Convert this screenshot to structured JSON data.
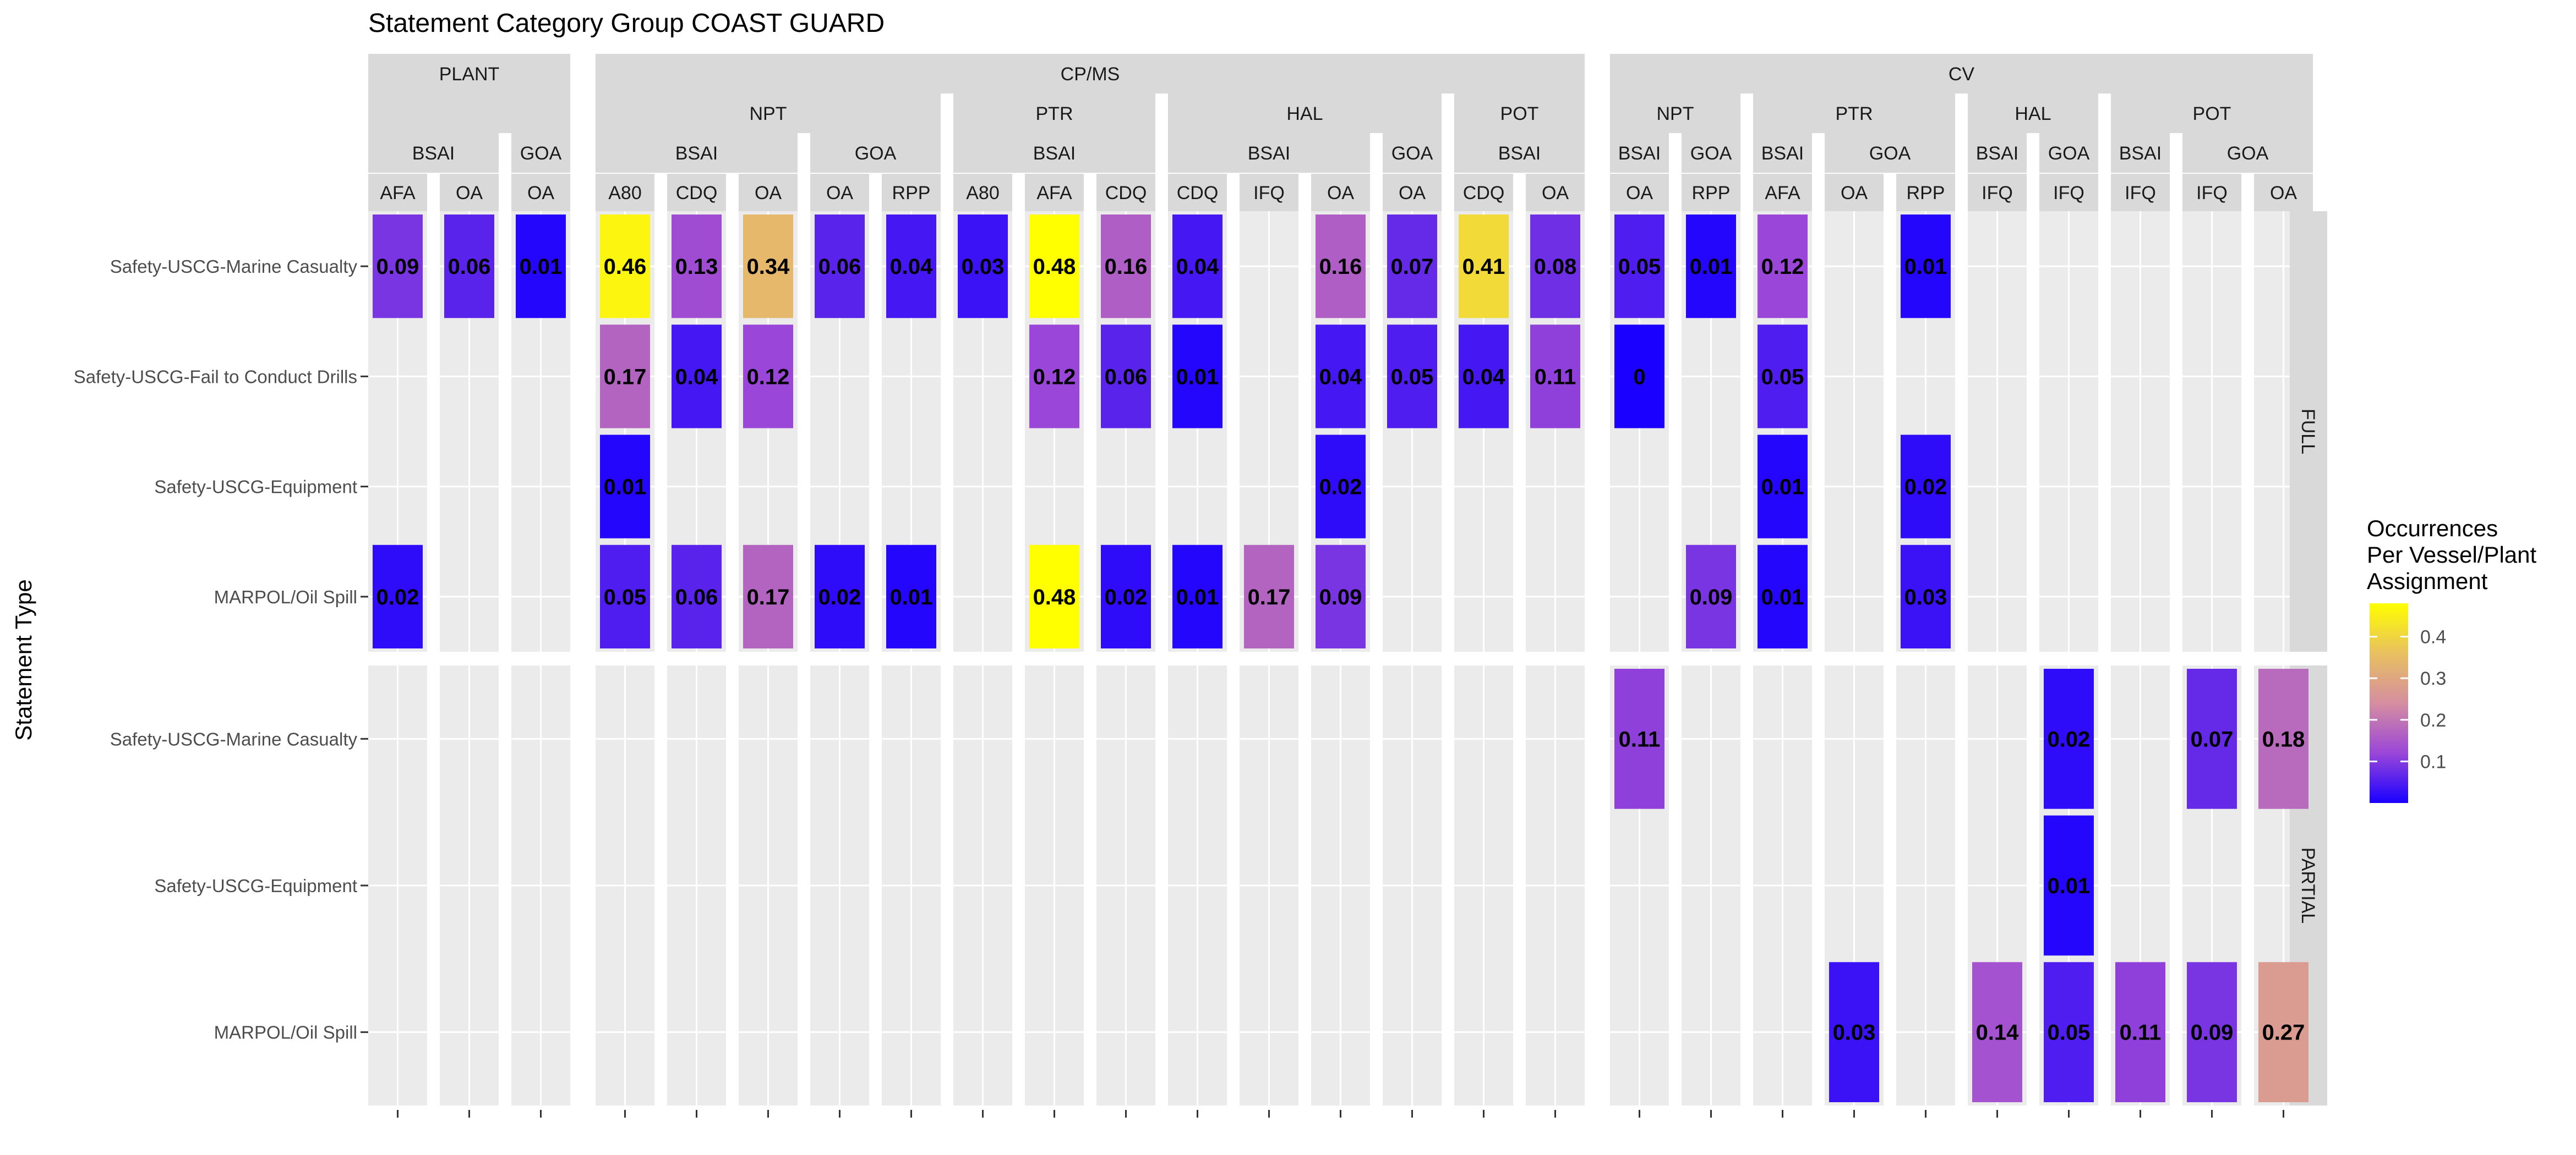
{
  "chart_data": {
    "type": "heatmap",
    "title": "Statement Category Group COAST GUARD",
    "ylabel": "Statement Type",
    "legend": {
      "title": [
        "Occurrences",
        "Per Vessel/Plant",
        "Assignment"
      ],
      "ticks": [
        "0.1",
        "0.2",
        "0.3",
        "0.4"
      ],
      "tick_values": [
        0.1,
        0.2,
        0.3,
        0.4
      ],
      "min": 0.0,
      "max": 0.48,
      "colors": [
        "#1a00ff",
        "#9a46d8",
        "#d58ea0",
        "#e8c060",
        "#ffff00"
      ],
      "placement": "right"
    },
    "column_groups": [
      {
        "name": "PLANT",
        "subgroups": [
          {
            "name": "",
            "regions": [
              {
                "name": "BSAI",
                "cols": [
                  "AFA",
                  "OA"
                ]
              },
              {
                "name": "GOA",
                "cols": [
                  "OA"
                ]
              }
            ]
          }
        ]
      },
      {
        "name": "CP/MS",
        "subgroups": [
          {
            "name": "NPT",
            "regions": [
              {
                "name": "BSAI",
                "cols": [
                  "A80",
                  "CDQ",
                  "OA"
                ]
              },
              {
                "name": "GOA",
                "cols": [
                  "OA",
                  "RPP"
                ]
              }
            ]
          },
          {
            "name": "PTR",
            "regions": [
              {
                "name": "BSAI",
                "cols": [
                  "A80",
                  "AFA",
                  "CDQ"
                ]
              }
            ]
          },
          {
            "name": "HAL",
            "regions": [
              {
                "name": "BSAI",
                "cols": [
                  "CDQ",
                  "IFQ",
                  "OA"
                ]
              },
              {
                "name": "GOA",
                "cols": [
                  "OA"
                ]
              }
            ]
          },
          {
            "name": "POT",
            "regions": [
              {
                "name": "BSAI",
                "cols": [
                  "CDQ",
                  "OA"
                ]
              }
            ]
          }
        ]
      },
      {
        "name": "CV",
        "subgroups": [
          {
            "name": "NPT",
            "regions": [
              {
                "name": "BSAI",
                "cols": [
                  "OA"
                ]
              },
              {
                "name": "GOA",
                "cols": [
                  "RPP"
                ]
              }
            ]
          },
          {
            "name": "PTR",
            "regions": [
              {
                "name": "BSAI",
                "cols": [
                  "AFA"
                ]
              },
              {
                "name": "GOA",
                "cols": [
                  "OA",
                  "RPP"
                ]
              }
            ]
          },
          {
            "name": "HAL",
            "regions": [
              {
                "name": "BSAI",
                "cols": [
                  "IFQ"
                ]
              },
              {
                "name": "GOA",
                "cols": [
                  "IFQ"
                ]
              }
            ]
          },
          {
            "name": "POT",
            "regions": [
              {
                "name": "BSAI",
                "cols": [
                  "IFQ"
                ]
              },
              {
                "name": "GOA",
                "cols": [
                  "IFQ",
                  "OA"
                ]
              }
            ]
          }
        ]
      }
    ],
    "row_panels": [
      {
        "name": "FULL",
        "rows": [
          "Safety-USCG-Marine Casualty",
          "Safety-USCG-Fail to Conduct Drills",
          "Safety-USCG-Equipment",
          "MARPOL/Oil Spill"
        ]
      },
      {
        "name": "PARTIAL",
        "rows": [
          "Safety-USCG-Marine Casualty",
          "Safety-USCG-Equipment",
          "MARPOL/Oil Spill"
        ]
      }
    ],
    "cells": [
      {
        "panel": 0,
        "row": 0,
        "col": 0,
        "value": 0.09,
        "label": "0.09"
      },
      {
        "panel": 0,
        "row": 0,
        "col": 1,
        "value": 0.06,
        "label": "0.06"
      },
      {
        "panel": 0,
        "row": 0,
        "col": 2,
        "value": 0.01,
        "label": "0.01"
      },
      {
        "panel": 0,
        "row": 0,
        "col": 3,
        "value": 0.46,
        "label": "0.46"
      },
      {
        "panel": 0,
        "row": 0,
        "col": 4,
        "value": 0.13,
        "label": "0.13"
      },
      {
        "panel": 0,
        "row": 0,
        "col": 5,
        "value": 0.34,
        "label": "0.34"
      },
      {
        "panel": 0,
        "row": 0,
        "col": 6,
        "value": 0.06,
        "label": "0.06"
      },
      {
        "panel": 0,
        "row": 0,
        "col": 7,
        "value": 0.04,
        "label": "0.04"
      },
      {
        "panel": 0,
        "row": 0,
        "col": 8,
        "value": 0.03,
        "label": "0.03"
      },
      {
        "panel": 0,
        "row": 0,
        "col": 9,
        "value": 0.48,
        "label": "0.48"
      },
      {
        "panel": 0,
        "row": 0,
        "col": 10,
        "value": 0.16,
        "label": "0.16"
      },
      {
        "panel": 0,
        "row": 0,
        "col": 11,
        "value": 0.04,
        "label": "0.04"
      },
      {
        "panel": 0,
        "row": 0,
        "col": 13,
        "value": 0.16,
        "label": "0.16"
      },
      {
        "panel": 0,
        "row": 0,
        "col": 14,
        "value": 0.07,
        "label": "0.07"
      },
      {
        "panel": 0,
        "row": 0,
        "col": 15,
        "value": 0.41,
        "label": "0.41"
      },
      {
        "panel": 0,
        "row": 0,
        "col": 16,
        "value": 0.08,
        "label": "0.08"
      },
      {
        "panel": 0,
        "row": 0,
        "col": 17,
        "value": 0.05,
        "label": "0.05"
      },
      {
        "panel": 0,
        "row": 0,
        "col": 18,
        "value": 0.01,
        "label": "0.01"
      },
      {
        "panel": 0,
        "row": 0,
        "col": 19,
        "value": 0.12,
        "label": "0.12"
      },
      {
        "panel": 0,
        "row": 0,
        "col": 21,
        "value": 0.01,
        "label": "0.01"
      },
      {
        "panel": 0,
        "row": 1,
        "col": 3,
        "value": 0.17,
        "label": "0.17"
      },
      {
        "panel": 0,
        "row": 1,
        "col": 4,
        "value": 0.04,
        "label": "0.04"
      },
      {
        "panel": 0,
        "row": 1,
        "col": 5,
        "value": 0.12,
        "label": "0.12"
      },
      {
        "panel": 0,
        "row": 1,
        "col": 9,
        "value": 0.12,
        "label": "0.12"
      },
      {
        "panel": 0,
        "row": 1,
        "col": 10,
        "value": 0.06,
        "label": "0.06"
      },
      {
        "panel": 0,
        "row": 1,
        "col": 11,
        "value": 0.01,
        "label": "0.01"
      },
      {
        "panel": 0,
        "row": 1,
        "col": 13,
        "value": 0.04,
        "label": "0.04"
      },
      {
        "panel": 0,
        "row": 1,
        "col": 14,
        "value": 0.05,
        "label": "0.05"
      },
      {
        "panel": 0,
        "row": 1,
        "col": 15,
        "value": 0.04,
        "label": "0.04"
      },
      {
        "panel": 0,
        "row": 1,
        "col": 16,
        "value": 0.11,
        "label": "0.11"
      },
      {
        "panel": 0,
        "row": 1,
        "col": 17,
        "value": 0.0,
        "label": "0"
      },
      {
        "panel": 0,
        "row": 1,
        "col": 19,
        "value": 0.05,
        "label": "0.05"
      },
      {
        "panel": 0,
        "row": 2,
        "col": 3,
        "value": 0.01,
        "label": "0.01"
      },
      {
        "panel": 0,
        "row": 2,
        "col": 13,
        "value": 0.02,
        "label": "0.02"
      },
      {
        "panel": 0,
        "row": 2,
        "col": 19,
        "value": 0.01,
        "label": "0.01"
      },
      {
        "panel": 0,
        "row": 2,
        "col": 21,
        "value": 0.02,
        "label": "0.02"
      },
      {
        "panel": 0,
        "row": 3,
        "col": 0,
        "value": 0.02,
        "label": "0.02"
      },
      {
        "panel": 0,
        "row": 3,
        "col": 3,
        "value": 0.05,
        "label": "0.05"
      },
      {
        "panel": 0,
        "row": 3,
        "col": 4,
        "value": 0.06,
        "label": "0.06"
      },
      {
        "panel": 0,
        "row": 3,
        "col": 5,
        "value": 0.17,
        "label": "0.17"
      },
      {
        "panel": 0,
        "row": 3,
        "col": 6,
        "value": 0.02,
        "label": "0.02"
      },
      {
        "panel": 0,
        "row": 3,
        "col": 7,
        "value": 0.01,
        "label": "0.01"
      },
      {
        "panel": 0,
        "row": 3,
        "col": 9,
        "value": 0.48,
        "label": "0.48"
      },
      {
        "panel": 0,
        "row": 3,
        "col": 10,
        "value": 0.02,
        "label": "0.02"
      },
      {
        "panel": 0,
        "row": 3,
        "col": 11,
        "value": 0.01,
        "label": "0.01"
      },
      {
        "panel": 0,
        "row": 3,
        "col": 12,
        "value": 0.17,
        "label": "0.17"
      },
      {
        "panel": 0,
        "row": 3,
        "col": 13,
        "value": 0.09,
        "label": "0.09"
      },
      {
        "panel": 0,
        "row": 3,
        "col": 18,
        "value": 0.09,
        "label": "0.09"
      },
      {
        "panel": 0,
        "row": 3,
        "col": 19,
        "value": 0.01,
        "label": "0.01"
      },
      {
        "panel": 0,
        "row": 3,
        "col": 21,
        "value": 0.03,
        "label": "0.03"
      },
      {
        "panel": 1,
        "row": 0,
        "col": 17,
        "value": 0.11,
        "label": "0.11"
      },
      {
        "panel": 1,
        "row": 0,
        "col": 23,
        "value": 0.02,
        "label": "0.02"
      },
      {
        "panel": 1,
        "row": 0,
        "col": 25,
        "value": 0.07,
        "label": "0.07"
      },
      {
        "panel": 1,
        "row": 0,
        "col": 26,
        "value": 0.18,
        "label": "0.18"
      },
      {
        "panel": 1,
        "row": 1,
        "col": 23,
        "value": 0.01,
        "label": "0.01"
      },
      {
        "panel": 1,
        "row": 2,
        "col": 20,
        "value": 0.03,
        "label": "0.03"
      },
      {
        "panel": 1,
        "row": 2,
        "col": 22,
        "value": 0.14,
        "label": "0.14"
      },
      {
        "panel": 1,
        "row": 2,
        "col": 23,
        "value": 0.05,
        "label": "0.05"
      },
      {
        "panel": 1,
        "row": 2,
        "col": 24,
        "value": 0.11,
        "label": "0.11"
      },
      {
        "panel": 1,
        "row": 2,
        "col": 25,
        "value": 0.09,
        "label": "0.09"
      },
      {
        "panel": 1,
        "row": 2,
        "col": 26,
        "value": 0.27,
        "label": "0.27"
      }
    ]
  }
}
